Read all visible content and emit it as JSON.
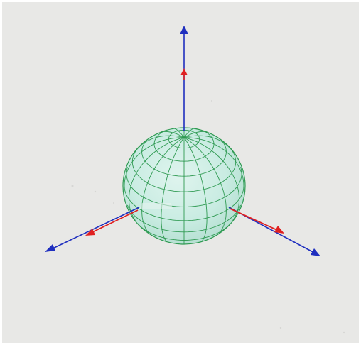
{
  "scene": {
    "description_visible_text": "",
    "colors": {
      "background": "#e8e8e6",
      "border": "#ffffff",
      "sphere_fill": "#c9ece2",
      "sphere_fill_shadow": "#b5dfd2",
      "sphere_wire": "#2f9a52",
      "axis_blue": "#1f2fbf",
      "axis_red": "#e02020"
    },
    "icons": {
      "axis_arrowhead": "triangle-arrowhead",
      "sphere": "wireframe-sphere"
    },
    "axes": [
      {
        "name": "vertical-axis",
        "colors": [
          "blue",
          "red"
        ]
      },
      {
        "name": "left-axis",
        "colors": [
          "blue",
          "red"
        ]
      },
      {
        "name": "right-axis",
        "colors": [
          "blue",
          "red"
        ]
      }
    ]
  }
}
